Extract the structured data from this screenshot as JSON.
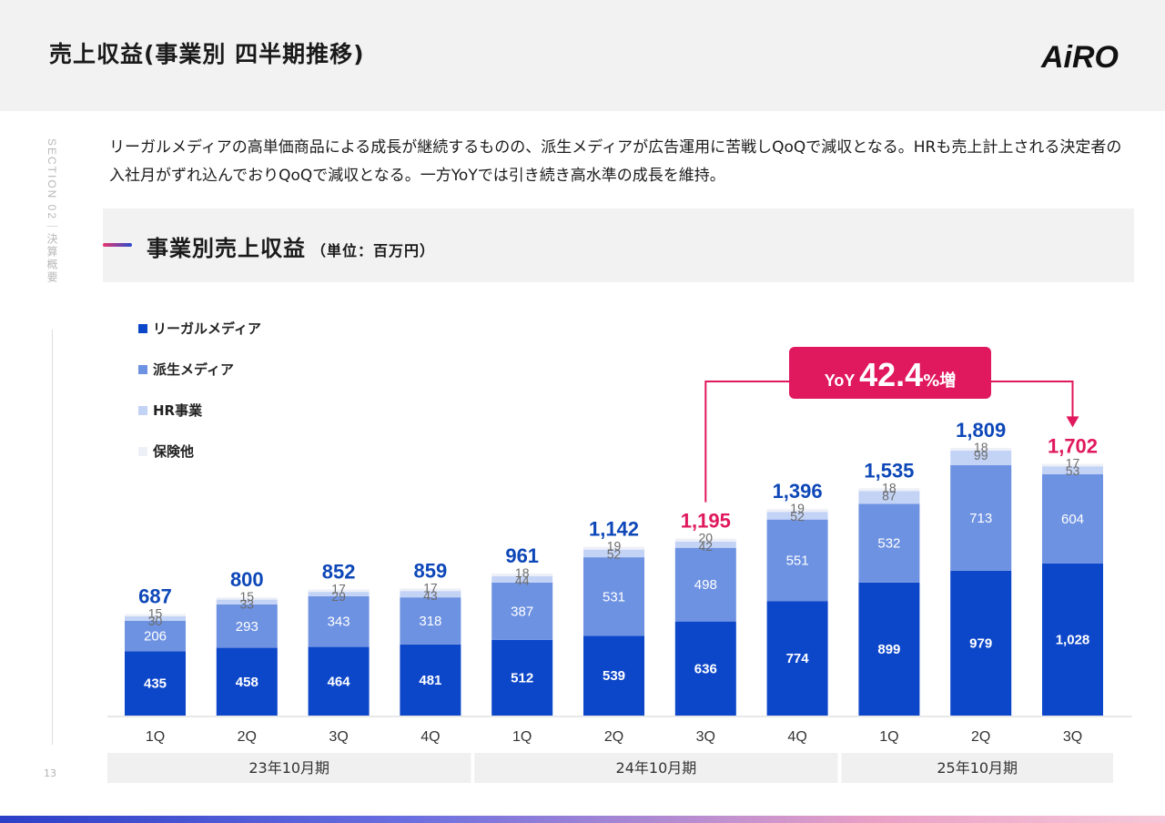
{
  "header": {
    "title": "売上収益(事業別 四半期推移)",
    "logo_text": "AiRO"
  },
  "side": {
    "section_label": "SECTION 02｜決算概要",
    "page_number": "13"
  },
  "summary": "リーガルメディアの高単価商品による成長が継続するものの、派生メディアが広告運用に苦戦しQoQで減収となる。HRも売上計上される決定者の入社月がずれ込んでおりQoQで減収となる。一方YoYでは引き続き高水準の成長を維持。",
  "panel": {
    "title": "事業別売上収益",
    "unit": "（単位：百万円）"
  },
  "callout": {
    "prefix": "YoY",
    "value": "42.4",
    "suffix": "%増"
  },
  "colors": {
    "legal": "#0d47c9",
    "derived": "#6e92e2",
    "hr": "#c3d3f6",
    "other": "#eef0f7",
    "total_blue": "#0d47b8",
    "total_red": "#e0185d",
    "callout_bg": "#e0185d",
    "period_bg": "#f0f0f0"
  },
  "chart_data": {
    "type": "bar",
    "stacked": true,
    "title": "事業別売上収益",
    "unit": "百万円",
    "categories": [
      "1Q",
      "2Q",
      "3Q",
      "4Q",
      "1Q",
      "2Q",
      "3Q",
      "4Q",
      "1Q",
      "2Q",
      "3Q"
    ],
    "periods": [
      {
        "label": "23年10月期",
        "from": 0,
        "to": 3
      },
      {
        "label": "24年10月期",
        "from": 4,
        "to": 7
      },
      {
        "label": "25年10月期",
        "from": 8,
        "to": 10
      }
    ],
    "series": [
      {
        "name": "リーガルメディア",
        "values": [
          435,
          458,
          464,
          481,
          512,
          539,
          636,
          774,
          899,
          979,
          1028
        ],
        "labels": [
          "435",
          "458",
          "464",
          "481",
          "512",
          "539",
          "636",
          "774",
          "899",
          "979",
          "1,028"
        ]
      },
      {
        "name": "派生メディア",
        "values": [
          206,
          293,
          343,
          318,
          387,
          531,
          498,
          551,
          532,
          713,
          604
        ],
        "labels": [
          "206",
          "293",
          "343",
          "318",
          "387",
          "531",
          "498",
          "551",
          "532",
          "713",
          "604"
        ]
      },
      {
        "name": "HR事業",
        "values": [
          30,
          33,
          29,
          43,
          44,
          52,
          42,
          52,
          87,
          99,
          53
        ],
        "labels": [
          "30",
          "33",
          "29",
          "43",
          "44",
          "52",
          "42",
          "52",
          "87",
          "99",
          "53"
        ]
      },
      {
        "name": "保険他",
        "values": [
          15,
          15,
          17,
          17,
          18,
          19,
          20,
          19,
          18,
          18,
          17
        ],
        "labels": [
          "15",
          "15",
          "17",
          "17",
          "18",
          "19",
          "20",
          "19",
          "18",
          "18",
          "17"
        ]
      }
    ],
    "totals": [
      687,
      800,
      852,
      859,
      961,
      1142,
      1195,
      1396,
      1535,
      1809,
      1702
    ],
    "total_labels": [
      "687",
      "800",
      "852",
      "859",
      "961",
      "1,142",
      "1,195",
      "1,396",
      "1,535",
      "1,809",
      "1,702"
    ],
    "highlight_indices": [
      6,
      10
    ],
    "ylim": [
      0,
      1809
    ]
  }
}
